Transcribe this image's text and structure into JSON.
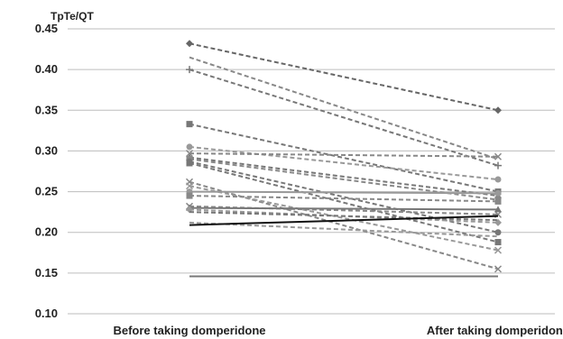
{
  "chart_data": {
    "type": "line",
    "title": "",
    "ylabel": "TpTe/QT",
    "xlabel": "",
    "categories": [
      "Before taking domperidone",
      "After taking domperidone"
    ],
    "ylim": [
      0.1,
      0.45
    ],
    "yticks": [
      "0.10",
      "0.15",
      "0.20",
      "0.25",
      "0.30",
      "0.35",
      "0.40",
      "0.45"
    ],
    "grid": true,
    "legend": "none",
    "series": [
      {
        "values": [
          0.432,
          0.35
        ],
        "color": "#666666",
        "style": "dashed",
        "marker": "diamond"
      },
      {
        "values": [
          0.415,
          0.29
        ],
        "color": "#888888",
        "style": "dashed",
        "marker": "none"
      },
      {
        "values": [
          0.4,
          0.282
        ],
        "color": "#777777",
        "style": "dashed",
        "marker": "plus"
      },
      {
        "values": [
          0.333,
          0.25
        ],
        "color": "#777777",
        "style": "dashed",
        "marker": "square"
      },
      {
        "values": [
          0.305,
          0.265
        ],
        "color": "#999999",
        "style": "dashed",
        "marker": "circle"
      },
      {
        "values": [
          0.297,
          0.293
        ],
        "color": "#888888",
        "style": "dashed",
        "marker": "x"
      },
      {
        "values": [
          0.292,
          0.245
        ],
        "color": "#777777",
        "style": "dashed",
        "marker": "triangle"
      },
      {
        "values": [
          0.29,
          0.24
        ],
        "color": "#888888",
        "style": "dashed",
        "marker": "square"
      },
      {
        "values": [
          0.287,
          0.2
        ],
        "color": "#777777",
        "style": "dashed",
        "marker": "circle"
      },
      {
        "values": [
          0.285,
          0.188
        ],
        "color": "#777777",
        "style": "dashed",
        "marker": "square"
      },
      {
        "values": [
          0.262,
          0.155
        ],
        "color": "#888888",
        "style": "dashed",
        "marker": "x"
      },
      {
        "values": [
          0.257,
          0.178
        ],
        "color": "#999999",
        "style": "dashed",
        "marker": "x"
      },
      {
        "values": [
          0.25,
          0.248
        ],
        "color": "#999999",
        "style": "solid",
        "marker": "circle"
      },
      {
        "values": [
          0.245,
          0.238
        ],
        "color": "#888888",
        "style": "dashed",
        "marker": "square"
      },
      {
        "values": [
          0.232,
          0.222
        ],
        "color": "#888888",
        "style": "dashed",
        "marker": "x"
      },
      {
        "values": [
          0.23,
          0.228
        ],
        "color": "#777777",
        "style": "solid",
        "marker": "triangle"
      },
      {
        "values": [
          0.228,
          0.212
        ],
        "color": "#999999",
        "style": "dashed",
        "marker": "diamond"
      },
      {
        "values": [
          0.225,
          0.215
        ],
        "color": "#777777",
        "style": "dashed",
        "marker": "none"
      },
      {
        "values": [
          0.212,
          0.195
        ],
        "color": "#999999",
        "style": "dashed",
        "marker": "none"
      },
      {
        "values": [
          0.209,
          0.22
        ],
        "color": "#111111",
        "style": "solid",
        "marker": "none"
      },
      {
        "values": [
          0.146,
          0.146
        ],
        "color": "#777777",
        "style": "solid",
        "marker": "none"
      }
    ]
  }
}
